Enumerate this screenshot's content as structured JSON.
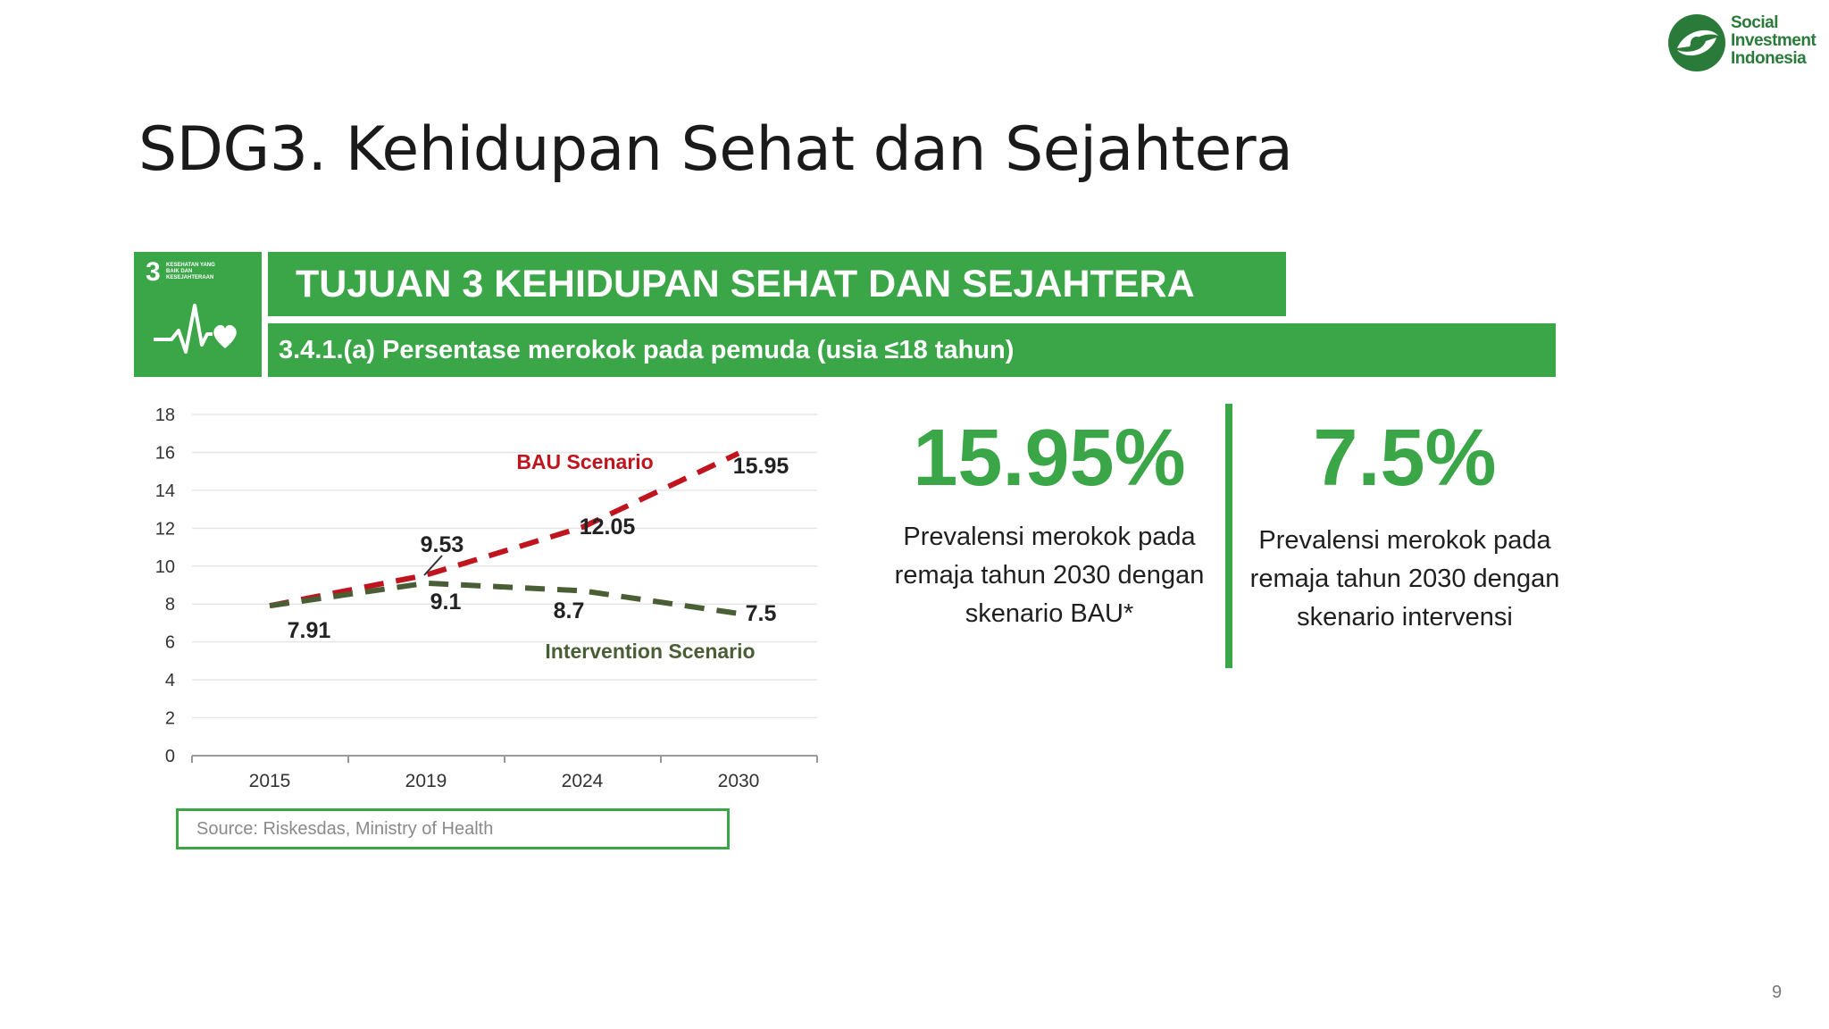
{
  "logo": {
    "lines": [
      "Social",
      "Investment",
      "Indonesia"
    ],
    "color": "#2a7a3a"
  },
  "slide": {
    "title": "SDG3. Kehidupan Sehat dan Sejahtera",
    "page_number": "9"
  },
  "banner": {
    "tile_number": "3",
    "tile_small_text": "KESEHATAN YANG BAIK DAN KESEJAHTERAAN",
    "title": "TUJUAN 3 KEHIDUPAN SEHAT DAN SEJAHTERA",
    "subtitle": "3.4.1.(a) Persentase merokok pada pemuda (usia ≤18 tahun)",
    "color": "#3aa647"
  },
  "chart_data": {
    "type": "line",
    "categories": [
      "2015",
      "2019",
      "2024",
      "2030"
    ],
    "series": [
      {
        "name": "BAU Scenario",
        "values": [
          7.91,
          9.53,
          12.05,
          15.95
        ],
        "color": "#c0141e",
        "dashed": true
      },
      {
        "name": "Intervention Scenario",
        "values": [
          7.91,
          9.1,
          8.7,
          7.5
        ],
        "color": "#4a5e35",
        "dashed": true
      }
    ],
    "data_labels": [
      "7.91",
      "9.53",
      "12.05",
      "15.95",
      "9.1",
      "8.7",
      "7.5"
    ],
    "ylim": [
      0,
      18
    ],
    "yticks": [
      "0",
      "2",
      "4",
      "6",
      "8",
      "10",
      "12",
      "14",
      "16",
      "18"
    ],
    "grid": true,
    "xlabel": "",
    "ylabel": ""
  },
  "source": "Source: Riskesdas, Ministry of Health",
  "kpis": [
    {
      "value": "15.95%",
      "desc": "Prevalensi merokok pada remaja tahun 2030 dengan skenario BAU*"
    },
    {
      "value": "7.5%",
      "desc": "Prevalensi merokok pada remaja tahun 2030 dengan skenario intervensi"
    }
  ]
}
